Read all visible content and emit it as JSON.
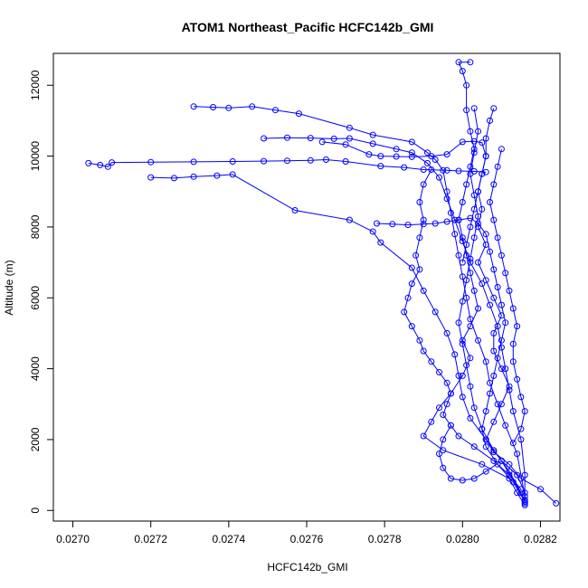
{
  "chart_data": {
    "type": "line",
    "title": "ATOM1 Northeast_Pacific HCFC142b_GMI",
    "xlabel": "HCFC142b_GMI",
    "ylabel": "Altitude (m)",
    "xlim": [
      0.02695,
      0.02825
    ],
    "ylim": [
      -300,
      12900
    ],
    "x_ticks": [
      0.027,
      0.0272,
      0.0274,
      0.0276,
      0.0278,
      0.028,
      0.0282
    ],
    "x_tick_labels": [
      "0.0270",
      "0.0272",
      "0.0274",
      "0.0276",
      "0.0278",
      "0.0280",
      "0.0282"
    ],
    "y_ticks": [
      0,
      2000,
      4000,
      6000,
      8000,
      10000,
      12000
    ],
    "y_tick_labels": [
      "0",
      "2000",
      "4000",
      "6000",
      "8000",
      "10000",
      "12000"
    ],
    "grid": false,
    "series_color": "#0000ff",
    "series": [
      {
        "values": [
          [
            0.02824,
            200
          ],
          [
            0.0282,
            600
          ],
          [
            0.02815,
            900
          ],
          [
            0.02812,
            1300
          ],
          [
            0.02808,
            1650
          ],
          [
            0.02806,
            2000
          ],
          [
            0.02808,
            2500
          ],
          [
            0.0281,
            3000
          ],
          [
            0.02812,
            3500
          ],
          [
            0.0281,
            4000
          ],
          [
            0.02808,
            4500
          ],
          [
            0.02808,
            5000
          ],
          [
            0.0281,
            5500
          ],
          [
            0.02808,
            6000
          ],
          [
            0.02806,
            6500
          ],
          [
            0.02804,
            7000
          ],
          [
            0.02806,
            7500
          ],
          [
            0.02804,
            8000
          ],
          [
            0.02805,
            8500
          ],
          [
            0.02804,
            9000
          ],
          [
            0.02805,
            9500
          ],
          [
            0.02806,
            10000
          ],
          [
            0.02806,
            10500
          ],
          [
            0.02807,
            11000
          ],
          [
            0.02808,
            11350
          ]
        ]
      },
      {
        "values": [
          [
            0.02816,
            150
          ],
          [
            0.02814,
            500
          ],
          [
            0.02812,
            900
          ],
          [
            0.02805,
            1300
          ],
          [
            0.02795,
            1700
          ],
          [
            0.0279,
            2100
          ],
          [
            0.02792,
            2500
          ],
          [
            0.02794,
            2900
          ],
          [
            0.02797,
            3300
          ],
          [
            0.028,
            3800
          ],
          [
            0.02802,
            4300
          ],
          [
            0.028,
            4800
          ],
          [
            0.02802,
            5200
          ],
          [
            0.02804,
            5700
          ],
          [
            0.02803,
            6200
          ],
          [
            0.02802,
            6700
          ],
          [
            0.02801,
            7200
          ],
          [
            0.028,
            7700
          ],
          [
            0.02799,
            8200
          ],
          [
            0.028,
            8700
          ],
          [
            0.02801,
            9200
          ],
          [
            0.02802,
            9700
          ],
          [
            0.02803,
            10200
          ],
          [
            0.02802,
            10700
          ],
          [
            0.02801,
            11300
          ],
          [
            0.02801,
            12000
          ],
          [
            0.028,
            12400
          ],
          [
            0.02799,
            12650
          ],
          [
            0.02802,
            12650
          ]
        ]
      },
      {
        "values": [
          [
            0.02704,
            9800
          ],
          [
            0.02707,
            9750
          ],
          [
            0.02709,
            9700
          ],
          [
            0.0271,
            9820
          ],
          [
            0.0272,
            9830
          ],
          [
            0.02731,
            9840
          ],
          [
            0.02741,
            9850
          ],
          [
            0.02749,
            9860
          ],
          [
            0.02755,
            9870
          ],
          [
            0.02761,
            9880
          ],
          [
            0.02765,
            9900
          ],
          [
            0.0277,
            9850
          ],
          [
            0.02779,
            9720
          ],
          [
            0.02785,
            9680
          ],
          [
            0.0279,
            9620
          ],
          [
            0.02796,
            9600
          ],
          [
            0.02799,
            9580
          ],
          [
            0.02803,
            9570
          ],
          [
            0.02806,
            9550
          ]
        ]
      },
      {
        "values": [
          [
            0.0272,
            9400
          ],
          [
            0.02726,
            9380
          ],
          [
            0.02731,
            9420
          ],
          [
            0.02737,
            9450
          ],
          [
            0.02741,
            9480
          ],
          [
            0.02757,
            8470
          ],
          [
            0.02771,
            8200
          ],
          [
            0.02777,
            7870
          ],
          [
            0.02779,
            7560
          ],
          [
            0.02787,
            6850
          ],
          [
            0.0279,
            6200
          ],
          [
            0.02793,
            5600
          ],
          [
            0.02796,
            5000
          ],
          [
            0.02798,
            4400
          ],
          [
            0.02799,
            3800
          ],
          [
            0.028,
            3200
          ],
          [
            0.02802,
            2600
          ],
          [
            0.02806,
            2000
          ],
          [
            0.0281,
            1400
          ],
          [
            0.02816,
            300
          ]
        ]
      },
      {
        "values": [
          [
            0.02731,
            11400
          ],
          [
            0.02736,
            11380
          ],
          [
            0.0274,
            11360
          ],
          [
            0.02746,
            11400
          ],
          [
            0.02752,
            11300
          ],
          [
            0.02758,
            11200
          ],
          [
            0.02771,
            10800
          ],
          [
            0.02777,
            10600
          ],
          [
            0.02787,
            10400
          ],
          [
            0.02791,
            10100
          ],
          [
            0.02793,
            9900
          ],
          [
            0.02795,
            9600
          ],
          [
            0.02796,
            9000
          ],
          [
            0.02797,
            8400
          ],
          [
            0.02798,
            7800
          ],
          [
            0.02799,
            7200
          ],
          [
            0.028,
            6600
          ],
          [
            0.02801,
            6000
          ],
          [
            0.02802,
            5400
          ],
          [
            0.02804,
            4800
          ],
          [
            0.02806,
            4200
          ],
          [
            0.02807,
            3600
          ],
          [
            0.02809,
            3000
          ],
          [
            0.02811,
            2400
          ],
          [
            0.02814,
            1600
          ],
          [
            0.02816,
            400
          ]
        ]
      },
      {
        "values": [
          [
            0.02749,
            10500
          ],
          [
            0.02755,
            10520
          ],
          [
            0.02761,
            10510
          ],
          [
            0.02767,
            10490
          ],
          [
            0.02771,
            10500
          ],
          [
            0.02777,
            10350
          ],
          [
            0.02783,
            10200
          ],
          [
            0.02787,
            10100
          ],
          [
            0.02791,
            9800
          ],
          [
            0.02794,
            9400
          ],
          [
            0.02796,
            8800
          ],
          [
            0.02798,
            8200
          ],
          [
            0.028,
            7600
          ],
          [
            0.02802,
            7000
          ],
          [
            0.02805,
            6400
          ],
          [
            0.02807,
            5800
          ],
          [
            0.02809,
            5200
          ],
          [
            0.0281,
            4600
          ],
          [
            0.02811,
            4000
          ],
          [
            0.02812,
            3400
          ],
          [
            0.02813,
            2800
          ],
          [
            0.02815,
            2000
          ],
          [
            0.02816,
            1000
          ],
          [
            0.02816,
            200
          ]
        ]
      },
      {
        "values": [
          [
            0.02764,
            10400
          ],
          [
            0.0277,
            10330
          ],
          [
            0.02776,
            10050
          ],
          [
            0.02779,
            10000
          ],
          [
            0.02783,
            9990
          ],
          [
            0.02787,
            9980
          ],
          [
            0.02792,
            10000
          ],
          [
            0.02796,
            10050
          ],
          [
            0.028,
            10400
          ],
          [
            0.02803,
            10420
          ],
          [
            0.02805,
            10380
          ],
          [
            0.02806,
            10000
          ],
          [
            0.02805,
            9500
          ],
          [
            0.02804,
            9000
          ],
          [
            0.02803,
            8500
          ],
          [
            0.02802,
            8000
          ],
          [
            0.02801,
            7500
          ],
          [
            0.028,
            7000
          ]
        ]
      },
      {
        "values": [
          [
            0.02792,
            9620
          ],
          [
            0.0279,
            9200
          ],
          [
            0.02789,
            8700
          ],
          [
            0.0279,
            8200
          ],
          [
            0.02789,
            7700
          ],
          [
            0.02788,
            7200
          ],
          [
            0.02789,
            6800
          ],
          [
            0.02787,
            6400
          ],
          [
            0.02786,
            6000
          ],
          [
            0.02785,
            5600
          ],
          [
            0.02787,
            5200
          ],
          [
            0.02789,
            4800
          ],
          [
            0.0279,
            4500
          ],
          [
            0.02792,
            4200
          ],
          [
            0.02794,
            3900
          ],
          [
            0.02796,
            3600
          ],
          [
            0.02797,
            3300
          ],
          [
            0.02796,
            3000
          ],
          [
            0.02795,
            2700
          ],
          [
            0.02797,
            2400
          ],
          [
            0.02799,
            2100
          ],
          [
            0.02803,
            1800
          ],
          [
            0.02808,
            1400
          ],
          [
            0.02812,
            1000
          ],
          [
            0.02815,
            600
          ]
        ]
      },
      {
        "values": [
          [
            0.02778,
            8100
          ],
          [
            0.02782,
            8080
          ],
          [
            0.02786,
            8060
          ],
          [
            0.0279,
            8080
          ],
          [
            0.02793,
            8100
          ],
          [
            0.02796,
            8150
          ],
          [
            0.02799,
            8200
          ],
          [
            0.02802,
            8250
          ],
          [
            0.02804,
            8100
          ],
          [
            0.02806,
            7800
          ],
          [
            0.02807,
            7300
          ],
          [
            0.02808,
            6800
          ],
          [
            0.02809,
            6300
          ],
          [
            0.0281,
            5800
          ],
          [
            0.02811,
            5300
          ],
          [
            0.0281,
            4800
          ],
          [
            0.02809,
            4300
          ],
          [
            0.02808,
            3800
          ],
          [
            0.02807,
            3300
          ],
          [
            0.02806,
            2800
          ],
          [
            0.02805,
            2300
          ],
          [
            0.02806,
            1800
          ],
          [
            0.02809,
            1300
          ],
          [
            0.02813,
            800
          ],
          [
            0.02816,
            250
          ]
        ]
      },
      {
        "values": [
          [
            0.02797,
            2400
          ],
          [
            0.02795,
            2000
          ],
          [
            0.02794,
            1600
          ],
          [
            0.02795,
            1200
          ],
          [
            0.02797,
            900
          ],
          [
            0.028,
            850
          ],
          [
            0.02803,
            900
          ],
          [
            0.02806,
            1100
          ],
          [
            0.0281,
            1400
          ],
          [
            0.02814,
            1000
          ],
          [
            0.02816,
            500
          ],
          [
            0.02816,
            250
          ]
        ]
      },
      {
        "values": [
          [
            0.0281,
            10200
          ],
          [
            0.02809,
            9700
          ],
          [
            0.02808,
            9200
          ],
          [
            0.02807,
            8700
          ],
          [
            0.02808,
            8200
          ],
          [
            0.02809,
            7700
          ],
          [
            0.0281,
            7200
          ],
          [
            0.02811,
            6700
          ],
          [
            0.02812,
            6200
          ],
          [
            0.02813,
            5700
          ],
          [
            0.02814,
            5200
          ],
          [
            0.02813,
            4700
          ],
          [
            0.02813,
            4200
          ],
          [
            0.02814,
            3700
          ],
          [
            0.02815,
            3200
          ],
          [
            0.02816,
            2800
          ],
          [
            0.02815,
            2300
          ],
          [
            0.02813,
            1900
          ]
        ]
      },
      {
        "values": [
          [
            0.02803,
            11350
          ],
          [
            0.02804,
            10700
          ],
          [
            0.02803,
            10100
          ],
          [
            0.02802,
            9500
          ],
          [
            0.02803,
            8900
          ],
          [
            0.02804,
            8300
          ],
          [
            0.02803,
            7700
          ],
          [
            0.02802,
            7100
          ],
          [
            0.02801,
            6500
          ],
          [
            0.028,
            5900
          ],
          [
            0.02799,
            5300
          ],
          [
            0.028,
            4700
          ],
          [
            0.02801,
            4100
          ],
          [
            0.02802,
            3500
          ],
          [
            0.02803,
            2900
          ],
          [
            0.02805,
            2300
          ],
          [
            0.02808,
            1700
          ],
          [
            0.02812,
            1100
          ],
          [
            0.02815,
            500
          ]
        ]
      }
    ]
  }
}
